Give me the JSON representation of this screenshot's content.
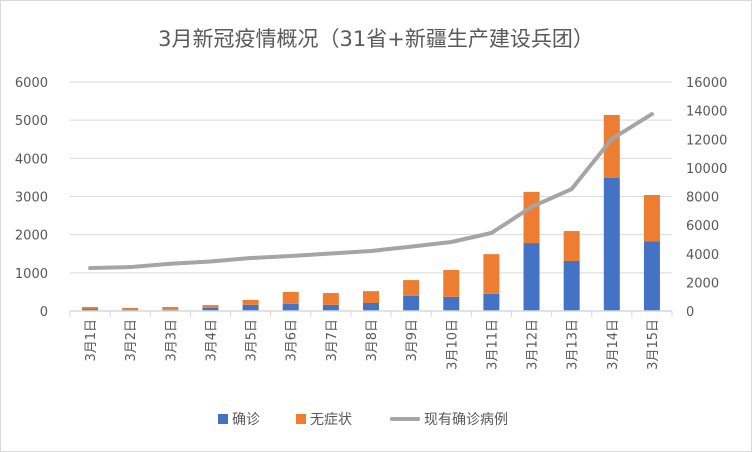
{
  "chart_data": {
    "type": "bar",
    "stacked": true,
    "title": "3月新冠疫情概况（31省+新疆生产建设兵团）",
    "categories": [
      "3月1日",
      "3月2日",
      "3月3日",
      "3月4日",
      "3月5日",
      "3月6日",
      "3月7日",
      "3月8日",
      "3月9日",
      "3月10日",
      "3月11日",
      "3月12日",
      "3月13日",
      "3月14日",
      "3月15日"
    ],
    "series": [
      {
        "name": "确诊",
        "type": "bar",
        "axis": "left",
        "color": "#4472c4",
        "values": [
          50,
          35,
          30,
          80,
          160,
          190,
          160,
          210,
          400,
          370,
          450,
          1780,
          1310,
          3485,
          1830
        ]
      },
      {
        "name": "无症状",
        "type": "bar",
        "axis": "left",
        "color": "#ed7d31",
        "values": [
          55,
          45,
          75,
          75,
          130,
          310,
          310,
          310,
          410,
          705,
          1040,
          1340,
          785,
          1650,
          1210
        ]
      },
      {
        "name": "现有确诊病例",
        "type": "line",
        "axis": "right",
        "color": "#a5a5a5",
        "values": [
          3000,
          3070,
          3300,
          3460,
          3700,
          3840,
          4020,
          4190,
          4500,
          4820,
          5450,
          7270,
          8520,
          12020,
          13760
        ]
      }
    ],
    "ylim_left": [
      0,
      6000
    ],
    "yticks_left": [
      "0",
      "1000",
      "2000",
      "3000",
      "4000",
      "5000",
      "6000"
    ],
    "ylim_right": [
      0,
      16000
    ],
    "yticks_right": [
      "0",
      "2000",
      "4000",
      "6000",
      "8000",
      "10000",
      "12000",
      "14000",
      "16000"
    ],
    "grid": true,
    "legend": "bottom"
  }
}
